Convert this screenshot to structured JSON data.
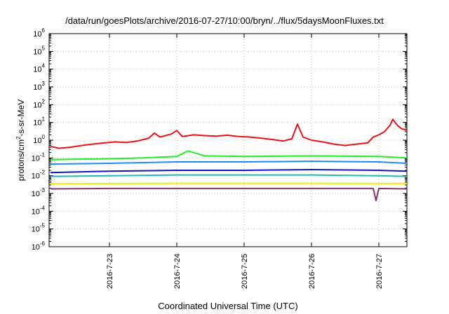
{
  "chart_data": {
    "type": "line",
    "title": "/data/run/goesPlots/archive/2016-07-27/10:00/bryn/../flux/5daysMoonFluxes.txt",
    "xlabel": "Coordinated Universal Time (UTC)",
    "ylabel_parts": [
      "protons/cm",
      "2",
      "-s-sr-MeV"
    ],
    "yscale": "log",
    "ylim_exp": [
      -6,
      6
    ],
    "y_ticks": [
      {
        "base": "10",
        "exp": "-6"
      },
      {
        "base": "10",
        "exp": "-5"
      },
      {
        "base": "10",
        "exp": "-4"
      },
      {
        "base": "10",
        "exp": "-3"
      },
      {
        "base": "10",
        "exp": "-2"
      },
      {
        "base": "10",
        "exp": "-1"
      },
      {
        "base": "10",
        "exp": "0"
      },
      {
        "base": "10",
        "exp": "1"
      },
      {
        "base": "10",
        "exp": "2"
      },
      {
        "base": "10",
        "exp": "3"
      },
      {
        "base": "10",
        "exp": "4"
      },
      {
        "base": "10",
        "exp": "5"
      },
      {
        "base": "10",
        "exp": "6"
      }
    ],
    "x_range": [
      "2016-07-22 02:30",
      "2016-07-27 10:00"
    ],
    "x_ticks": [
      "2016-7-23",
      "2016-7-24",
      "2016-7-25",
      "2016-7-26",
      "2016-7-27"
    ],
    "grid": true,
    "series": [
      {
        "color": "#ee1111",
        "points": [
          [
            "2016-07-22 03:00",
            0.45
          ],
          [
            "2016-07-22 06:00",
            0.35
          ],
          [
            "2016-07-22 10:00",
            0.4
          ],
          [
            "2016-07-22 14:00",
            0.5
          ],
          [
            "2016-07-22 18:00",
            0.6
          ],
          [
            "2016-07-22 22:00",
            0.7
          ],
          [
            "2016-07-23 02:00",
            0.8
          ],
          [
            "2016-07-23 06:00",
            0.75
          ],
          [
            "2016-07-23 10:00",
            0.9
          ],
          [
            "2016-07-23 14:00",
            1.3
          ],
          [
            "2016-07-23 16:00",
            2.5
          ],
          [
            "2016-07-23 18:00",
            1.5
          ],
          [
            "2016-07-23 22:00",
            2.2
          ],
          [
            "2016-07-24 00:00",
            3.5
          ],
          [
            "2016-07-24 02:00",
            1.6
          ],
          [
            "2016-07-24 06:00",
            2.0
          ],
          [
            "2016-07-24 10:00",
            1.8
          ],
          [
            "2016-07-24 14:00",
            1.7
          ],
          [
            "2016-07-24 18:00",
            1.9
          ],
          [
            "2016-07-24 22:00",
            1.6
          ],
          [
            "2016-07-25 02:00",
            1.5
          ],
          [
            "2016-07-25 06:00",
            1.3
          ],
          [
            "2016-07-25 10:00",
            1.1
          ],
          [
            "2016-07-25 14:00",
            0.9
          ],
          [
            "2016-07-25 17:00",
            1.2
          ],
          [
            "2016-07-25 19:00",
            8.0
          ],
          [
            "2016-07-25 21:00",
            1.5
          ],
          [
            "2016-07-26 00:00",
            1.0
          ],
          [
            "2016-07-26 04:00",
            0.8
          ],
          [
            "2016-07-26 08:00",
            0.6
          ],
          [
            "2016-07-26 12:00",
            0.5
          ],
          [
            "2016-07-26 16:00",
            0.6
          ],
          [
            "2016-07-26 20:00",
            0.7
          ],
          [
            "2016-07-26 22:00",
            1.5
          ],
          [
            "2016-07-27 00:00",
            2.0
          ],
          [
            "2016-07-27 02:00",
            3.0
          ],
          [
            "2016-07-27 04:00",
            7.0
          ],
          [
            "2016-07-27 05:00",
            15.0
          ],
          [
            "2016-07-27 06:00",
            9.0
          ],
          [
            "2016-07-27 07:00",
            6.0
          ],
          [
            "2016-07-27 08:00",
            4.5
          ],
          [
            "2016-07-27 09:00",
            4.0
          ],
          [
            "2016-07-27 10:00",
            3.5
          ]
        ]
      },
      {
        "color": "#22ee22",
        "points": [
          [
            "2016-07-22 03:00",
            0.08
          ],
          [
            "2016-07-23 00:00",
            0.09
          ],
          [
            "2016-07-23 12:00",
            0.1
          ],
          [
            "2016-07-24 00:00",
            0.12
          ],
          [
            "2016-07-24 04:00",
            0.25
          ],
          [
            "2016-07-24 10:00",
            0.13
          ],
          [
            "2016-07-25 00:00",
            0.12
          ],
          [
            "2016-07-26 00:00",
            0.13
          ],
          [
            "2016-07-27 00:00",
            0.12
          ],
          [
            "2016-07-27 10:00",
            0.1
          ]
        ]
      },
      {
        "color": "#2288ff",
        "points": [
          [
            "2016-07-22 03:00",
            0.045
          ],
          [
            "2016-07-23 00:00",
            0.05
          ],
          [
            "2016-07-24 00:00",
            0.06
          ],
          [
            "2016-07-25 00:00",
            0.06
          ],
          [
            "2016-07-26 00:00",
            0.065
          ],
          [
            "2016-07-27 00:00",
            0.06
          ],
          [
            "2016-07-27 10:00",
            0.05
          ]
        ]
      },
      {
        "color": "#1111cc",
        "points": [
          [
            "2016-07-22 03:00",
            0.015
          ],
          [
            "2016-07-23 00:00",
            0.018
          ],
          [
            "2016-07-24 00:00",
            0.02
          ],
          [
            "2016-07-25 00:00",
            0.02
          ],
          [
            "2016-07-26 00:00",
            0.022
          ],
          [
            "2016-07-27 00:00",
            0.02
          ],
          [
            "2016-07-27 10:00",
            0.018
          ]
        ]
      },
      {
        "color": "#22bbbb",
        "points": [
          [
            "2016-07-22 03:00",
            0.009
          ],
          [
            "2016-07-23 00:00",
            0.01
          ],
          [
            "2016-07-24 00:00",
            0.011
          ],
          [
            "2016-07-25 00:00",
            0.011
          ],
          [
            "2016-07-26 00:00",
            0.011
          ],
          [
            "2016-07-27 00:00",
            0.01
          ],
          [
            "2016-07-27 10:00",
            0.009
          ]
        ]
      },
      {
        "color": "#eeee00",
        "points": [
          [
            "2016-07-22 03:00",
            0.0035
          ],
          [
            "2016-07-24 00:00",
            0.0037
          ],
          [
            "2016-07-26 00:00",
            0.0037
          ],
          [
            "2016-07-27 10:00",
            0.0036
          ]
        ]
      },
      {
        "color": "#883366",
        "points": [
          [
            "2016-07-22 03:00",
            0.0018
          ],
          [
            "2016-07-23 00:00",
            0.0019
          ],
          [
            "2016-07-24 00:00",
            0.0019
          ],
          [
            "2016-07-25 00:00",
            0.0019
          ],
          [
            "2016-07-26 00:00",
            0.0019
          ],
          [
            "2016-07-26 22:00",
            0.0019
          ],
          [
            "2016-07-26 23:00",
            0.0004
          ],
          [
            "2016-07-27 00:00",
            0.0019
          ],
          [
            "2016-07-27 10:00",
            0.0018
          ]
        ]
      }
    ]
  }
}
